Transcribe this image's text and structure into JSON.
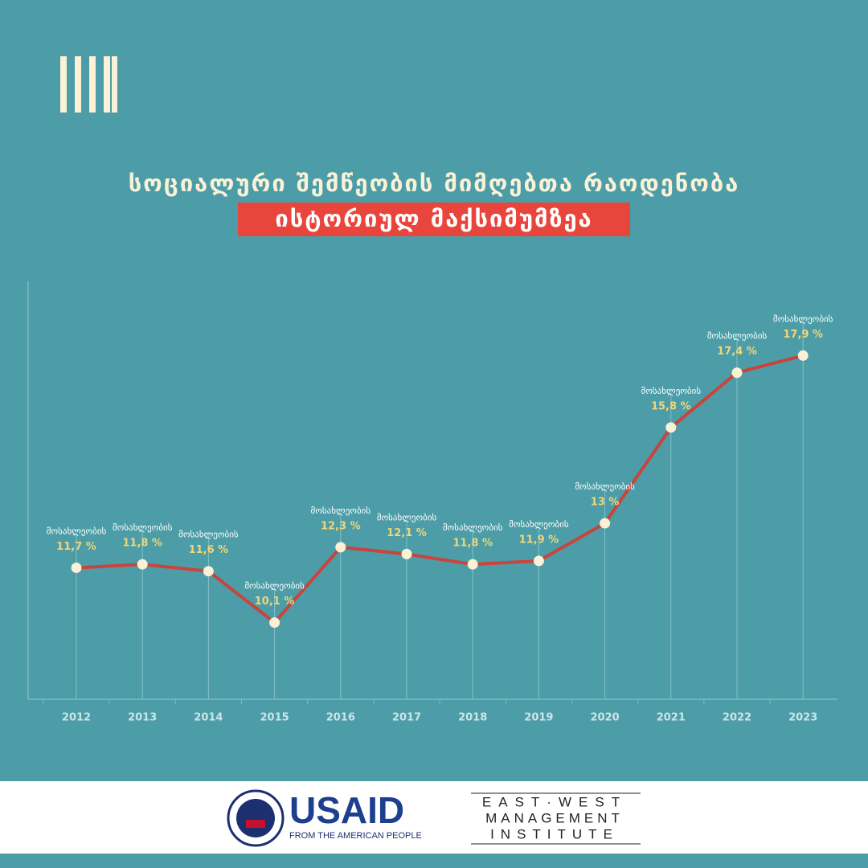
{
  "chart_data": {
    "type": "line",
    "title": "სოციალური  შემწეობის მიმღებთა რაოდენობა",
    "subtitle": "ისტორიულ მაქსიმუმზეა",
    "point_label": "მოსახლეობის",
    "categories": [
      "2012",
      "2013",
      "2014",
      "2015",
      "2016",
      "2017",
      "2018",
      "2019",
      "2020",
      "2021",
      "2022",
      "2023"
    ],
    "values": [
      11.7,
      11.8,
      11.6,
      10.1,
      12.3,
      12.1,
      11.8,
      11.9,
      13,
      15.8,
      17.4,
      17.9
    ],
    "value_labels": [
      "11,7 %",
      "11,8 %",
      "11,6 %",
      "10,1 %",
      "12,3 %",
      "12,1 %",
      "11,8 %",
      "11,9 %",
      "13 %",
      "15,8 %",
      "17,4 %",
      "17,9 %"
    ],
    "color": "#c9443c",
    "ylim": [
      8,
      20
    ]
  },
  "footer": {
    "usaid": "USAID",
    "usaid_tagline": "FROM THE AMERICAN PEOPLE",
    "ewmi": [
      "EAST·WEST",
      "MANAGEMENT",
      "INSTITUTE"
    ]
  }
}
